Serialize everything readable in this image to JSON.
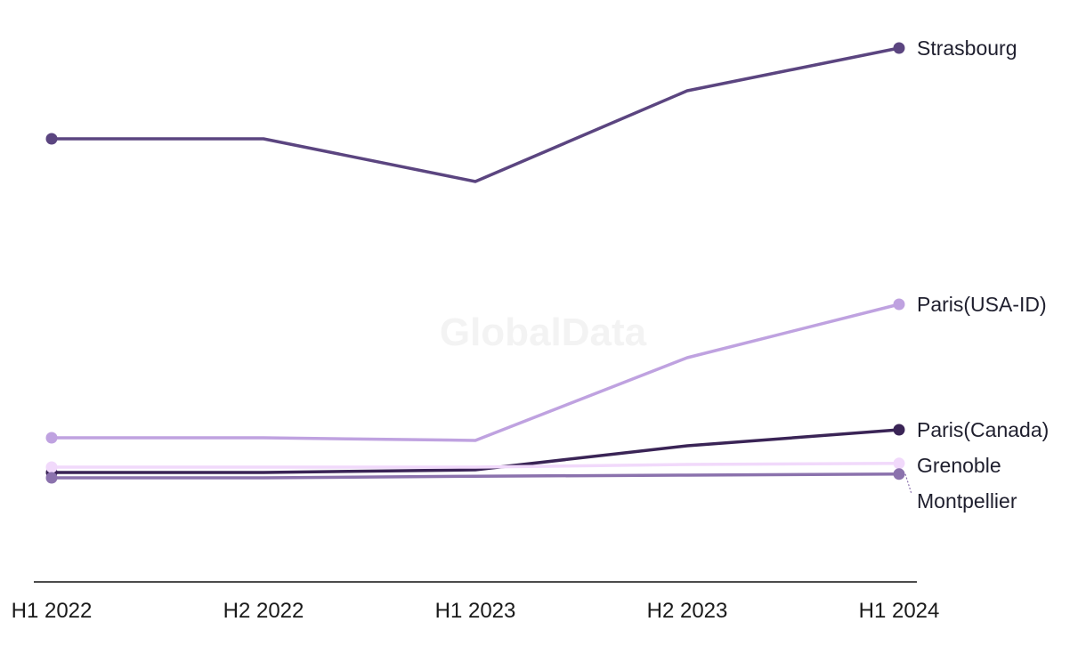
{
  "watermark": "GlobalData",
  "chart_data": {
    "type": "line",
    "title": "",
    "xlabel": "",
    "ylabel": "",
    "categories": [
      "H1 2022",
      "H2 2022",
      "H1 2023",
      "H2 2023",
      "H1 2024"
    ],
    "ylim": [
      0,
      100
    ],
    "grid": false,
    "legend": "direct labels at line ends (right)",
    "series": [
      {
        "name": "Strasbourg",
        "color": "#5b4580",
        "values": [
          83,
          83,
          75,
          92,
          100
        ]
      },
      {
        "name": "Paris(USA-ID)",
        "color": "#bfa2e0",
        "values": [
          27,
          27,
          26.5,
          42,
          52
        ]
      },
      {
        "name": "Paris(Canada)",
        "color": "#3a2456",
        "values": [
          20.5,
          20.5,
          21,
          25.5,
          28.5
        ]
      },
      {
        "name": "Grenoble",
        "color": "#f1d9fb",
        "values": [
          21.5,
          21.5,
          21.5,
          22,
          22.2
        ]
      },
      {
        "name": "Montpellier",
        "color": "#8b72ad",
        "values": [
          19.5,
          19.5,
          19.8,
          20,
          20.2
        ]
      }
    ]
  }
}
